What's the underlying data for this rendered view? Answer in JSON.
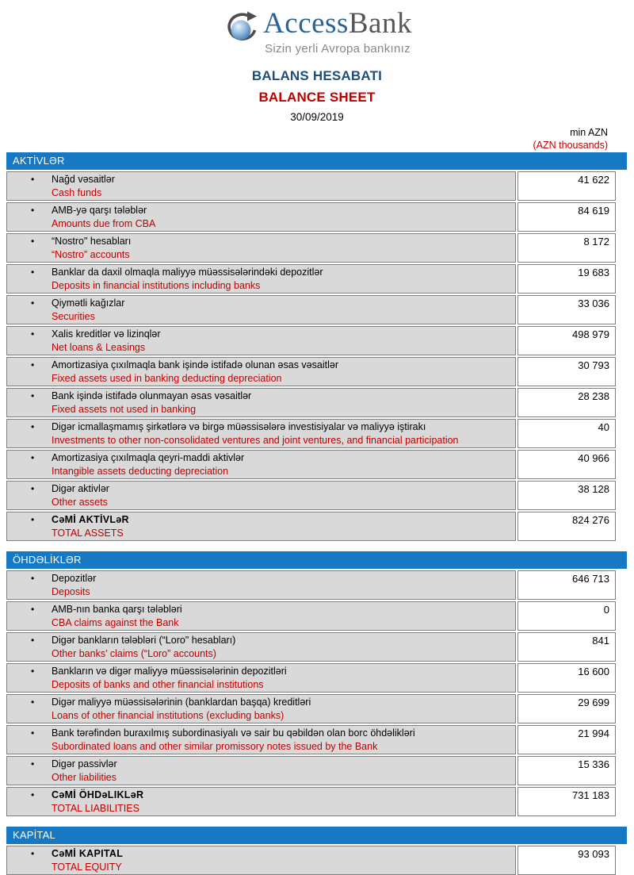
{
  "header": {
    "brand_access": "Access",
    "brand_bank": "Bank",
    "tagline": "Sizin yerli Avropa bankınız",
    "title_az": "BALANS HESABATI",
    "title_en": "BALANCE SHEET",
    "date": "30/09/2019",
    "unit_az": "min AZN",
    "unit_en": "(AZN thousands)"
  },
  "colors": {
    "section_bar": "#1778c4",
    "row_background": "#d9d9d9",
    "border": "#7f7f7f",
    "accent_red": "#c00000",
    "title_blue": "#1f4e79",
    "logo_access_blue": "#2a6496",
    "logo_bank_gray": "#55565a"
  },
  "sections": [
    {
      "title": "AKTİVLƏR",
      "rows": [
        {
          "az": "Nağd vəsaitlər",
          "en": "Cash funds",
          "value": "41 622",
          "bold": false
        },
        {
          "az": "AMB-yə qarşı tələblər",
          "en": "Amounts due from CBA",
          "value": "84 619",
          "bold": false
        },
        {
          "az": "“Nostro\" hesabları",
          "en": "“Nostro” accounts",
          "value": "8 172",
          "bold": false
        },
        {
          "az": "Banklar da daxil olmaqla maliyyə müəssisələrindəki depozitlər",
          "en": "Deposits in financial institutions including banks",
          "value": "19 683",
          "bold": false
        },
        {
          "az": "Qiymətli kağızlar",
          "en": "Securities",
          "value": "33 036",
          "bold": false
        },
        {
          "az": "Xalis kreditlər və lizinqlər",
          "en": "Net loans & Leasings",
          "value": "498 979",
          "bold": false
        },
        {
          "az": "Amortizasiya çıxılmaqla bank işində istifadə olunan əsas vəsaitlər",
          "en": "Fixed assets used in banking deducting depreciation",
          "value": "30 793",
          "bold": false
        },
        {
          "az": "Bank işində istifadə olunmayan əsas vəsaitlər",
          "en": "Fixed assets not used in banking",
          "value": "28 238",
          "bold": false
        },
        {
          "az": "Digər icmallaşmamış şirkətlərə və birgə müəssisələrə investisiyalar və maliyyə iştirakı",
          "en": "Investments to other non-consolidated ventures and joint ventures, and financial participation",
          "value": "40",
          "bold": false
        },
        {
          "az": "Amortizasiya çıxılmaqla qeyri-maddi aktivlər",
          "en": "Intangible assets deducting depreciation",
          "value": "40 966",
          "bold": false
        },
        {
          "az": "Digər aktivlər",
          "en": "Other assets",
          "value": "38 128",
          "bold": false
        },
        {
          "az": "CəMİ AKTİVLəR",
          "en": "TOTAL ASSETS",
          "value": "824 276",
          "bold": true
        }
      ]
    },
    {
      "title": "ÖHDƏLİKLƏR",
      "rows": [
        {
          "az": "Depozitlər",
          "en": "Deposits",
          "value": "646 713",
          "bold": false
        },
        {
          "az": "AMB-nın banka qarşı tələbləri",
          "en": "CBA claims against the Bank",
          "value": "0",
          "bold": false
        },
        {
          "az": "Digər bankların tələbləri (“Loro\" hesabları)",
          "en": "Other banks’ claims (“Loro” accounts)",
          "value": "841",
          "bold": false
        },
        {
          "az": "Bankların və digər maliyyə müəssisələrinin depozitləri",
          "en": "Deposits of banks and other financial institutions",
          "value": "16 600",
          "bold": false
        },
        {
          "az": "Digər maliyyə müəssisələrinin (banklardan başqa) kreditləri",
          "en": "Loans of other financial institutions (excluding banks)",
          "value": "29 699",
          "bold": false
        },
        {
          "az": "Bank tərəfindən buraxılmış subordinasiyalı və sair bu qəbildən olan borc öhdəlikləri",
          "en": "Subordinated loans and other similar promissory notes issued by the Bank",
          "value": "21 994",
          "bold": false
        },
        {
          "az": "Digər passivlər",
          "en": "Other liabilities",
          "value": "15 336",
          "bold": false
        },
        {
          "az": "CəMİ ÖHDəLIKLəR",
          "en": "TOTAL LIABILITIES",
          "value": "731 183",
          "bold": true
        }
      ]
    },
    {
      "title": "KAPİTAL",
      "rows": [
        {
          "az": "CəMİ KAPITAL",
          "en": "TOTAL EQUITY",
          "value": "93 093",
          "bold": true
        }
      ]
    }
  ]
}
